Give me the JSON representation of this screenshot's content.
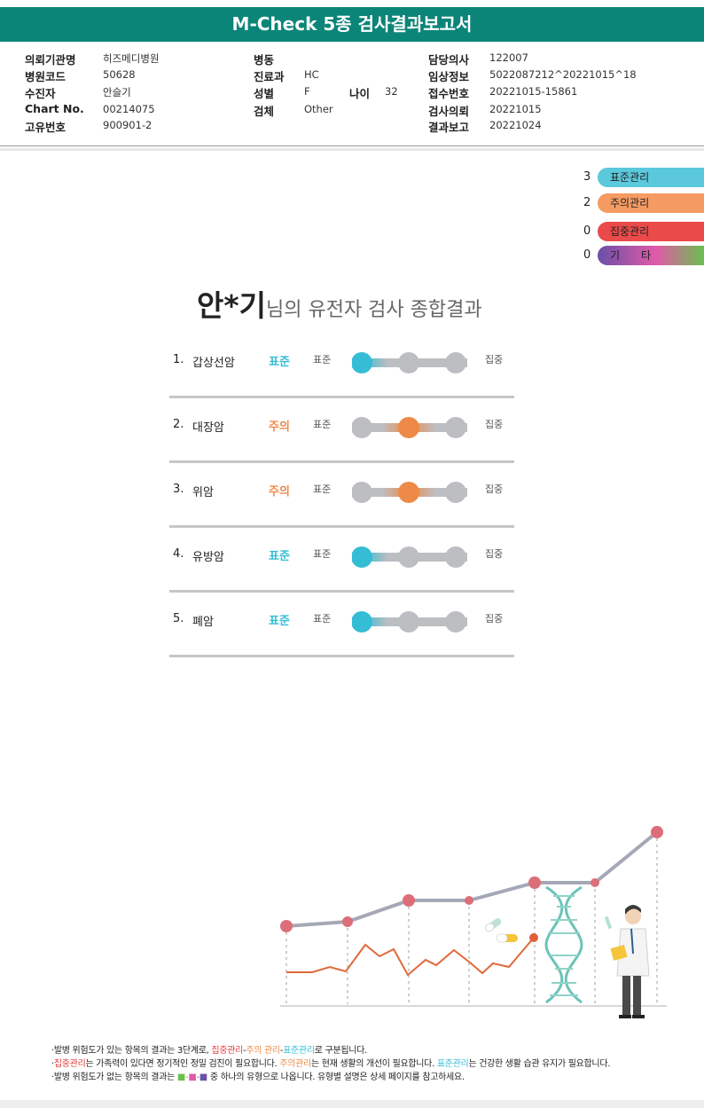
{
  "title": "M-Check 5종 검사결과보고서",
  "info": {
    "col1": [
      {
        "k": "의뢰기관명",
        "v": "히즈메디병원"
      },
      {
        "k": "병원코드",
        "v": "50628"
      },
      {
        "k": "수진자",
        "v": "안슬기"
      },
      {
        "k": "Chart No.",
        "v": "00214075"
      },
      {
        "k": "고유번호",
        "v": "900901-2"
      }
    ],
    "col2": [
      {
        "k": "병동",
        "v": ""
      },
      {
        "k": "진료과",
        "v": "HC"
      },
      {
        "k": "성별",
        "v": "F"
      },
      {
        "k": "검체",
        "v": "Other"
      }
    ],
    "age_label": "나이",
    "age_value": "32",
    "col3": [
      {
        "k": "담당의사",
        "v": "122007"
      },
      {
        "k": "임상정보",
        "v": "5022087212^20221015^18"
      },
      {
        "k": "접수번호",
        "v": "20221015-15861"
      },
      {
        "k": "검사의뢰",
        "v": "20221015"
      },
      {
        "k": "결과보고",
        "v": "20221024"
      }
    ]
  },
  "legend": [
    {
      "count": "3",
      "label": "표준관리",
      "color": "#5bc8dc"
    },
    {
      "count": "2",
      "label": "주의관리",
      "color": "#f59b62"
    },
    {
      "count": "0",
      "label": "집중관리",
      "color": "#ea4a4a"
    },
    {
      "count": "0",
      "label": "기　　타",
      "color": "gradient"
    }
  ],
  "headline": {
    "name": "안*기",
    "rest": "님의 유전자 검사 종합결과"
  },
  "results": [
    {
      "num": "1.",
      "name": "갑상선암",
      "status": "표준",
      "level": 0
    },
    {
      "num": "2.",
      "name": "대장암",
      "status": "주의",
      "level": 1
    },
    {
      "num": "3.",
      "name": "위암",
      "status": "주의",
      "level": 1
    },
    {
      "num": "4.",
      "name": "유방암",
      "status": "표준",
      "level": 0
    },
    {
      "num": "5.",
      "name": "폐암",
      "status": "표준",
      "level": 0
    }
  ],
  "scale": {
    "low": "표준",
    "high": "집중"
  },
  "colors": {
    "standard": "#35bdd6",
    "caution": "#ee8a48",
    "inactive": "#bdbec2",
    "teal": "#0b8578"
  },
  "notes": {
    "line1": {
      "a": "·발병 위험도가 있는 항목의 결과는 3단계로, ",
      "b": "집중관리",
      "c": "-",
      "d": "주의 관리",
      "e": "-",
      "f": "표준관리",
      "g": "로 구분됩니다."
    },
    "line2": {
      "a": "·",
      "b": "집중관리",
      "c": "는 가족력이 있다면 정기적인 정밀 검진이 필요합니다. ",
      "d": "주의관리",
      "e": "는 현재 생활의 개선이 필요합니다. ",
      "f": "표준관리",
      "g": "는 건강한 생활 습관 유지가 필요합니다."
    },
    "line3": {
      "a": "·발병 위험도가 없는 항목의 결과는 ",
      "b": "■-■-■",
      "c": " 중 하나의 유형으로 나옵니다. 유형별 설명은 상세 페이지를 참고하세요."
    }
  }
}
